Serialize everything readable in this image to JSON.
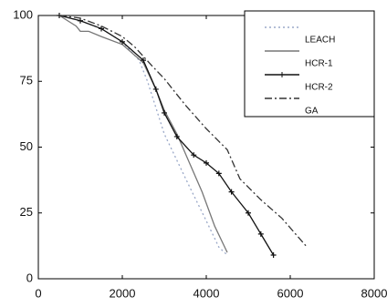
{
  "chart_data": {
    "type": "line",
    "xlim": [
      0,
      8000
    ],
    "xticks": [
      0,
      2000,
      4000,
      6000,
      8000
    ],
    "ylim": [
      0,
      100
    ],
    "yticks": [
      0,
      25,
      50,
      75,
      100
    ],
    "legend": "upper right",
    "series": [
      {
        "name": "LEACH",
        "color": "#9aa8c8",
        "dash": "2,3",
        "x": [
          500,
          1000,
          1500,
          2000,
          2400,
          2600,
          2800,
          3000,
          3300,
          3600,
          4000,
          4300,
          4500
        ],
        "values": [
          100,
          98,
          95,
          90,
          83,
          75,
          65,
          55,
          45,
          35,
          22,
          12,
          9
        ]
      },
      {
        "name": "HCR-1",
        "color": "#777777",
        "dash": "none",
        "x": [
          500,
          900,
          1000,
          1200,
          1500,
          2000,
          2500,
          2800,
          3000,
          3300,
          3600,
          3900,
          4200,
          4500
        ],
        "values": [
          100,
          96,
          94,
          94,
          92,
          89,
          82,
          72,
          64,
          55,
          44,
          33,
          20,
          10
        ]
      },
      {
        "name": "HCR-2",
        "color": "#111111",
        "dash": "none",
        "marker": "+",
        "x": [
          500,
          1000,
          1500,
          2000,
          2500,
          2800,
          3000,
          3300,
          3700,
          4000,
          4300,
          4600,
          5000,
          5300,
          5600
        ],
        "values": [
          100,
          98,
          95,
          90,
          83,
          72,
          63,
          54,
          47,
          44,
          40,
          33,
          25,
          17,
          9
        ]
      },
      {
        "name": "GA",
        "color": "#333333",
        "dash": "8,3,2,3",
        "x": [
          500,
          1000,
          1500,
          2000,
          2300,
          2700,
          3000,
          3500,
          4000,
          4500,
          4800,
          5300,
          5800,
          6400
        ],
        "values": [
          100,
          99,
          96,
          92,
          88,
          81,
          76,
          66,
          57,
          49,
          38,
          30,
          23,
          12
        ]
      }
    ]
  }
}
